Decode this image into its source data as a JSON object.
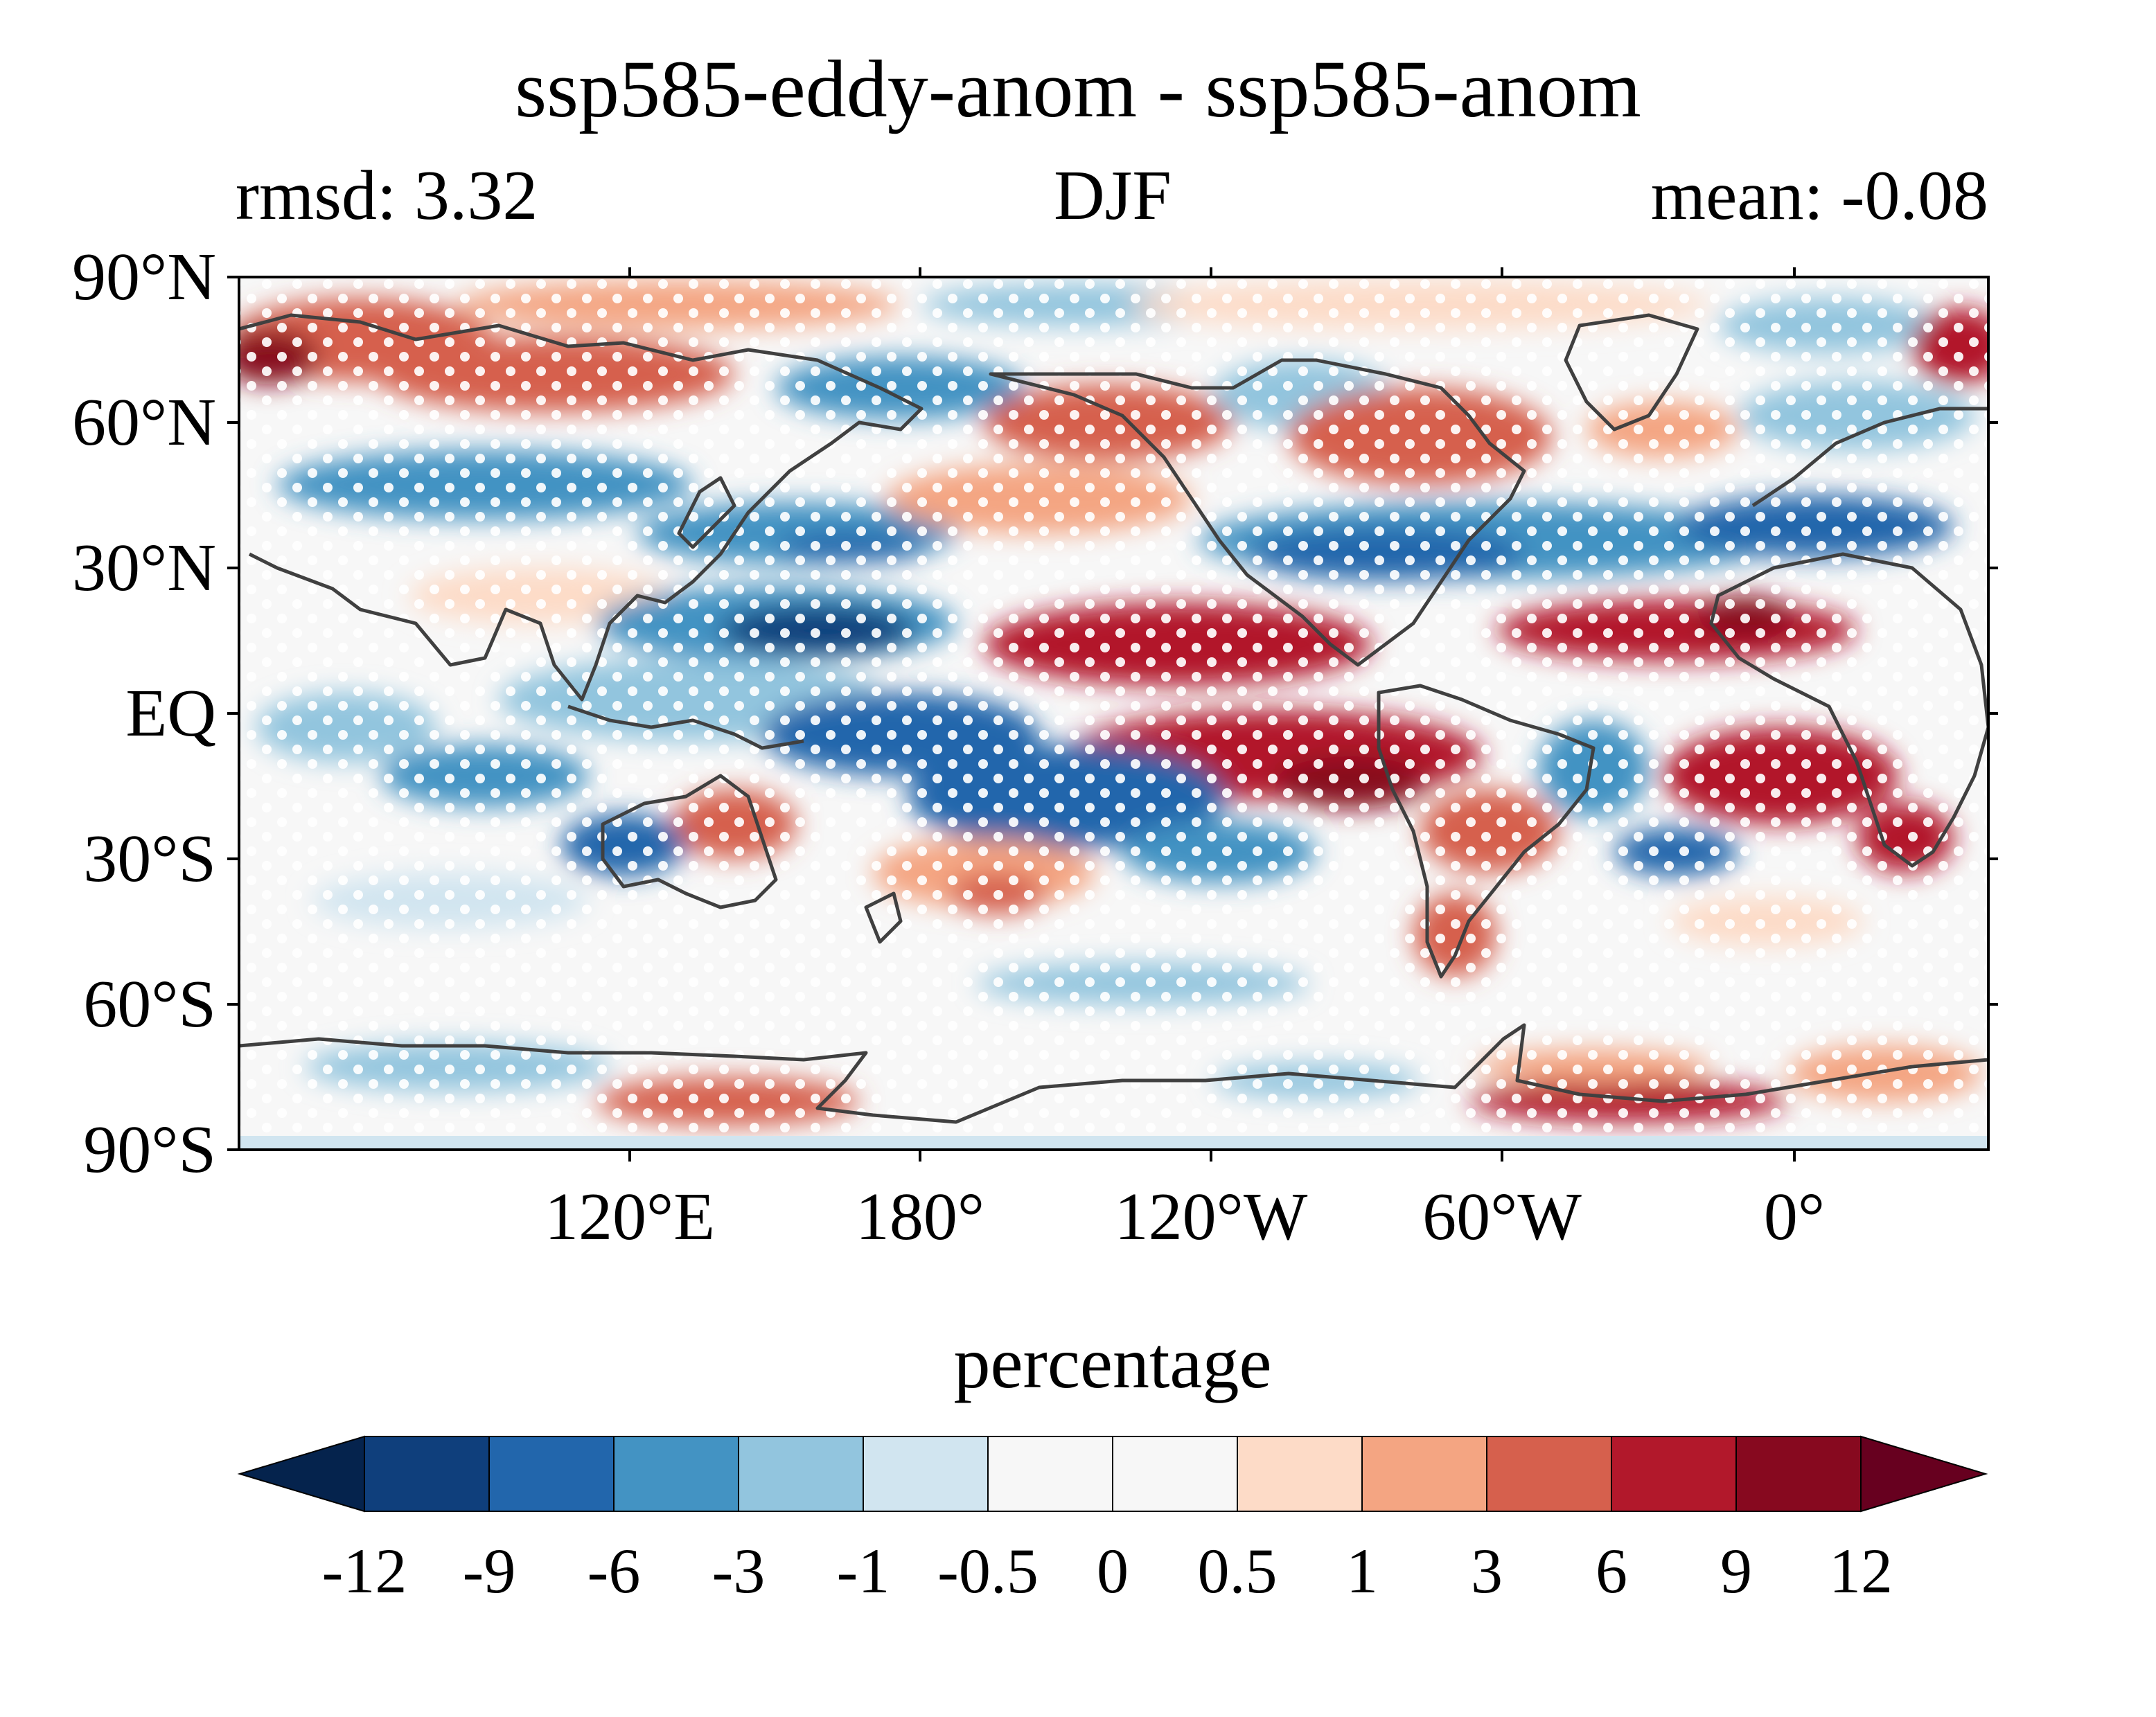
{
  "figure": {
    "title": "ssp585-eddy-anom - ssp585-anom",
    "subtitle_left": "rmsd: 3.32",
    "subtitle_center": "DJF",
    "subtitle_right": "mean: -0.08"
  },
  "map": {
    "projection": "PlateCarree",
    "lat_ticks": [
      "90°N",
      "60°N",
      "30°N",
      "EQ",
      "30°S",
      "60°S",
      "90°S"
    ],
    "lon_ticks": [
      "120°E",
      "180°",
      "120°W",
      "60°W",
      "0°"
    ],
    "coastline_color": "#404040",
    "stippling": "white dots mark significant regions"
  },
  "colorbar": {
    "label": "percentage",
    "extend": "both",
    "levels": [
      "-12",
      "-9",
      "-6",
      "-3",
      "-1",
      "-0.5",
      "0",
      "0.5",
      "1",
      "3",
      "6",
      "9",
      "12"
    ],
    "colors": [
      "#05234d",
      "#0f3f7c",
      "#2266ac",
      "#4393c3",
      "#92c5de",
      "#d1e5f0",
      "#f7f7f7",
      "#f7f7f7",
      "#fddbc7",
      "#f4a582",
      "#d6604d",
      "#b2182b",
      "#87091f",
      "#67001f"
    ]
  }
}
